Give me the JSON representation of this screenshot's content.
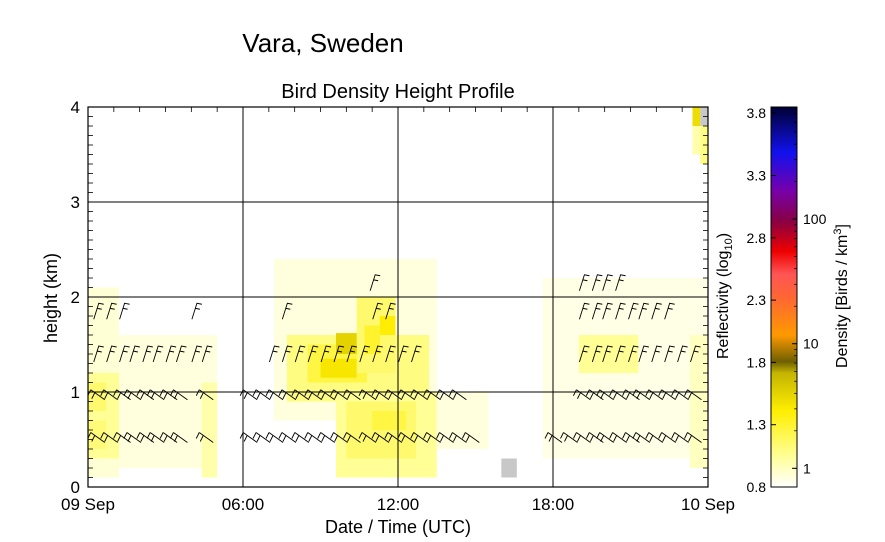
{
  "chart_data": {
    "type": "heatmap",
    "supertitle": "Vara, Sweden",
    "title": "Bird Density Height Profile",
    "xlabel": "Date / Time (UTC)",
    "ylabel": "height (km)",
    "xlim_hours": [
      0,
      24
    ],
    "ylim_km": [
      0,
      4
    ],
    "x_ticks": [
      {
        "hour": 0,
        "label": "09 Sep"
      },
      {
        "hour": 6,
        "label": "06:00"
      },
      {
        "hour": 12,
        "label": "12:00"
      },
      {
        "hour": 18,
        "label": "18:00"
      },
      {
        "hour": 24,
        "label": "10 Sep"
      }
    ],
    "y_ticks": [
      {
        "value": 0,
        "label": "0"
      },
      {
        "value": 1,
        "label": "1"
      },
      {
        "value": 2,
        "label": "2"
      },
      {
        "value": 3,
        "label": "3"
      },
      {
        "value": 4,
        "label": "4"
      }
    ],
    "grid": true,
    "colorbar": {
      "left_label": "Reflectivity (log",
      "left_label_sub": "10",
      "left_label_end": ")",
      "left_ticks": [
        {
          "value": 0.8,
          "label": "0.8"
        },
        {
          "value": 1.3,
          "label": "1.3"
        },
        {
          "value": 1.8,
          "label": "1.8"
        },
        {
          "value": 2.3,
          "label": "2.3"
        },
        {
          "value": 2.8,
          "label": "2.8"
        },
        {
          "value": 3.3,
          "label": "3.3"
        },
        {
          "value": 3.8,
          "label": "3.8"
        }
      ],
      "right_label": "Density [Birds / km",
      "right_label_sup": "3",
      "right_label_end": "]",
      "right_ticks": [
        {
          "value": 1,
          "label": "1"
        },
        {
          "value": 10,
          "label": "10"
        },
        {
          "value": 100,
          "label": "100"
        }
      ],
      "range_log10": [
        0.8,
        3.85
      ],
      "color_stops": [
        {
          "v": 0.0,
          "color": "#ffffff"
        },
        {
          "v": 0.08,
          "color": "#ffff99"
        },
        {
          "v": 0.2,
          "color": "#ffee00"
        },
        {
          "v": 0.3,
          "color": "#c4b400"
        },
        {
          "v": 0.33,
          "color": "#6e6000"
        },
        {
          "v": 0.4,
          "color": "#ff9900"
        },
        {
          "v": 0.5,
          "color": "#ff6633"
        },
        {
          "v": 0.56,
          "color": "#ff5555"
        },
        {
          "v": 0.62,
          "color": "#ee0000"
        },
        {
          "v": 0.7,
          "color": "#880044"
        },
        {
          "v": 0.78,
          "color": "#7700aa"
        },
        {
          "v": 0.88,
          "color": "#1111ee"
        },
        {
          "v": 1.0,
          "color": "#000033"
        }
      ]
    },
    "cells": [
      {
        "x0": 0.0,
        "x1": 1.2,
        "y0": 0.1,
        "y1": 2.1,
        "log10": 0.9
      },
      {
        "x0": 0.0,
        "x1": 1.2,
        "y0": 0.3,
        "y1": 1.2,
        "log10": 1.05
      },
      {
        "x0": 0.0,
        "x1": 0.7,
        "y0": 0.8,
        "y1": 1.1,
        "log10": 1.15
      },
      {
        "x0": 0.0,
        "x1": 0.7,
        "y0": 0.4,
        "y1": 0.7,
        "log10": 1.12
      },
      {
        "x0": 1.2,
        "x1": 5.0,
        "y0": 0.2,
        "y1": 1.6,
        "log10": 0.88
      },
      {
        "x0": 4.4,
        "x1": 5.0,
        "y0": 0.1,
        "y1": 1.1,
        "log10": 1.0
      },
      {
        "x0": 7.2,
        "x1": 13.5,
        "y0": 0.7,
        "y1": 2.4,
        "log10": 0.88
      },
      {
        "x0": 7.7,
        "x1": 13.2,
        "y0": 0.9,
        "y1": 1.6,
        "log10": 1.1
      },
      {
        "x0": 8.5,
        "x1": 10.8,
        "y0": 1.1,
        "y1": 1.5,
        "log10": 1.25
      },
      {
        "x0": 9.0,
        "x1": 10.4,
        "y0": 1.15,
        "y1": 1.35,
        "log10": 1.45
      },
      {
        "x0": 9.6,
        "x1": 10.6,
        "y0": 1.4,
        "y1": 1.62,
        "log10": 1.55
      },
      {
        "x0": 10.4,
        "x1": 11.9,
        "y0": 1.2,
        "y1": 2.0,
        "log10": 1.15
      },
      {
        "x0": 10.7,
        "x1": 11.3,
        "y0": 1.4,
        "y1": 1.7,
        "log10": 1.3
      },
      {
        "x0": 11.3,
        "x1": 11.9,
        "y0": 1.6,
        "y1": 1.8,
        "log10": 1.4
      },
      {
        "x0": 9.6,
        "x1": 13.5,
        "y0": 0.1,
        "y1": 1.0,
        "log10": 1.05
      },
      {
        "x0": 10.0,
        "x1": 12.7,
        "y0": 0.3,
        "y1": 0.9,
        "log10": 1.15
      },
      {
        "x0": 11.0,
        "x1": 12.3,
        "y0": 0.6,
        "y1": 0.8,
        "log10": 1.25
      },
      {
        "x0": 13.5,
        "x1": 15.5,
        "y0": 0.4,
        "y1": 1.0,
        "log10": 0.88
      },
      {
        "x0": 16.0,
        "x1": 16.6,
        "y0": 0.1,
        "y1": 0.3,
        "gray": true
      },
      {
        "x0": 17.6,
        "x1": 24.0,
        "y0": 0.3,
        "y1": 2.2,
        "log10": 0.86
      },
      {
        "x0": 19.0,
        "x1": 21.3,
        "y0": 1.2,
        "y1": 1.6,
        "log10": 1.05
      },
      {
        "x0": 23.3,
        "x1": 24.0,
        "y0": 0.2,
        "y1": 1.6,
        "log10": 0.95
      },
      {
        "x0": 23.7,
        "x1": 24.0,
        "y0": 3.4,
        "y1": 4.0,
        "log10": 1.1
      },
      {
        "x0": 23.4,
        "x1": 23.7,
        "y0": 3.5,
        "y1": 3.9,
        "log10": 1.0
      },
      {
        "x0": 23.4,
        "x1": 23.7,
        "y0": 3.8,
        "y1": 4.0,
        "log10": 1.5
      },
      {
        "x0": 23.7,
        "x1": 24.0,
        "y0": 3.8,
        "y1": 4.0,
        "gray": true
      }
    ],
    "wind_barbs": [
      {
        "h": 0.95,
        "times": [
          0.3,
          0.8,
          1.3,
          1.7,
          2.2,
          2.6,
          3.1,
          3.5,
          4.5,
          6.2,
          6.7,
          7.2,
          7.7,
          8.2,
          8.7,
          9.2,
          9.7,
          10.2,
          10.8,
          11.3,
          11.8,
          12.3,
          12.8,
          13.3,
          13.8,
          14.3,
          19.1,
          19.6,
          20.0,
          20.5,
          21.0,
          21.4,
          21.9,
          22.4,
          22.9,
          23.4
        ]
      },
      {
        "h": 0.5,
        "times": [
          0.3,
          0.8,
          1.3,
          1.7,
          2.2,
          2.6,
          3.1,
          3.5,
          4.5,
          6.2,
          6.7,
          7.2,
          7.7,
          8.2,
          8.7,
          9.2,
          9.7,
          10.2,
          10.8,
          11.3,
          11.8,
          12.3,
          12.8,
          13.3,
          13.8,
          14.3,
          14.8,
          18.0,
          18.6,
          19.1,
          19.6,
          20.0,
          20.5,
          21.0,
          21.4,
          21.9,
          22.4,
          22.9,
          23.4
        ]
      },
      {
        "h": 1.4,
        "times": [
          0.3,
          0.8,
          1.3,
          1.7,
          2.2,
          2.6,
          3.1,
          3.5,
          4.1,
          4.5,
          7.1,
          7.6,
          8.1,
          8.6,
          9.1,
          9.6,
          10.1,
          10.6,
          11.1,
          11.6,
          12.1,
          12.6,
          19.1,
          19.6,
          20.0,
          20.5,
          21.0,
          21.4,
          21.9,
          22.4,
          22.9,
          23.4
        ]
      },
      {
        "h": 1.85,
        "times": [
          0.3,
          0.8,
          1.3,
          4.1,
          7.6,
          11.1,
          11.6,
          19.1,
          19.6,
          20.0,
          20.5,
          21.0,
          21.4,
          21.9,
          22.4
        ]
      },
      {
        "h": 2.15,
        "times": [
          11.0,
          19.1,
          19.6,
          20.0,
          20.5
        ]
      }
    ]
  }
}
